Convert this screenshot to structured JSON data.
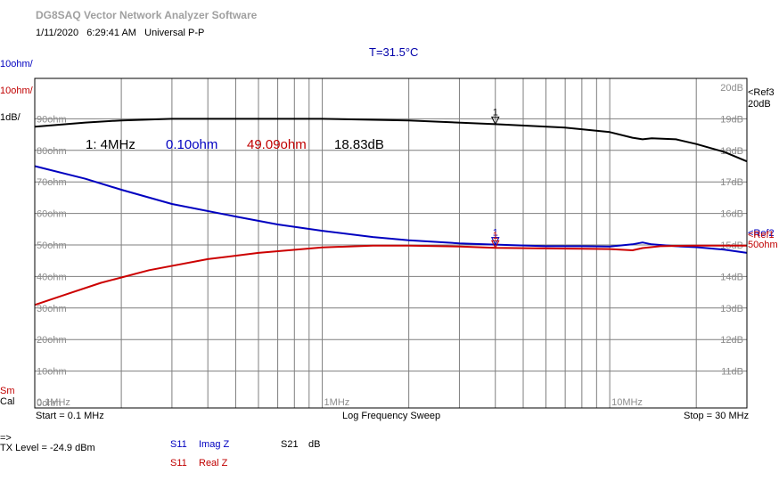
{
  "app": {
    "title": "DG8SAQ Vector Network Analyzer Software",
    "date": "1/11/2020",
    "time": "6:29:41 AM",
    "mode": "Universal P-P",
    "temperature": "T=31.5°C"
  },
  "scales": {
    "imag": "10ohm/",
    "real": "10ohm/",
    "db": "1dB/",
    "sm": "Sm",
    "cal": "Cal"
  },
  "ref_labels": {
    "ref3": "<Ref3",
    "ref3_value": "20dB",
    "ref2": "<Ref2",
    "ref1": "<Ref1",
    "ref_ohm": "50ohm"
  },
  "marker": {
    "number": "1",
    "freq": "1: 4MHz",
    "imag": "0.10ohm",
    "real": "49.09ohm",
    "db": "18.83dB"
  },
  "footer": {
    "start": "Start = 0.1 MHz",
    "sweep": "Log Frequency Sweep",
    "stop": "Stop = 30 MHz",
    "arrow": "=>",
    "tx_level": "TX Level = -24.9 dBm",
    "s11_a": "S11",
    "imag_z": "Imag Z",
    "s21": "S21",
    "db": "dB",
    "s11_b": "S11",
    "real_z": "Real Z"
  },
  "chart_data": {
    "type": "line",
    "xscale": "log",
    "xlim": [
      0.1,
      30
    ],
    "x_tick_labels": [
      {
        "x": 0.1,
        "label": "0.1MHz"
      },
      {
        "x": 1,
        "label": "1MHz"
      },
      {
        "x": 10,
        "label": "10MHz"
      }
    ],
    "left_axis": {
      "ylim": [
        0,
        100
      ],
      "tick_labels": [
        {
          "y": 90,
          "label": "90ohm"
        },
        {
          "y": 80,
          "label": "80ohm"
        },
        {
          "y": 70,
          "label": "70ohm"
        },
        {
          "y": 60,
          "label": "60ohm"
        },
        {
          "y": 50,
          "label": "50ohm"
        },
        {
          "y": 40,
          "label": "40ohm"
        },
        {
          "y": 30,
          "label": "30ohm"
        },
        {
          "y": 20,
          "label": "20ohm"
        },
        {
          "y": 10,
          "label": "10ohm"
        },
        {
          "y": 0,
          "label": "0ohm"
        }
      ]
    },
    "right_axis": {
      "ylim": [
        10,
        20
      ],
      "tick_labels": [
        {
          "y": 20,
          "label": "20dB"
        },
        {
          "y": 19,
          "label": "19dB"
        },
        {
          "y": 18,
          "label": "18dB"
        },
        {
          "y": 17,
          "label": "17dB"
        },
        {
          "y": 16,
          "label": "16dB"
        },
        {
          "y": 15,
          "label": "15dB"
        },
        {
          "y": 14,
          "label": "14dB"
        },
        {
          "y": 13,
          "label": "13dB"
        },
        {
          "y": 12,
          "label": "12dB"
        },
        {
          "y": 11,
          "label": "11dB"
        }
      ]
    },
    "grid": true,
    "series": [
      {
        "name": "S21 dB",
        "axis": "right",
        "color": "#000000",
        "points": [
          [
            0.1,
            18.75
          ],
          [
            0.15,
            18.88
          ],
          [
            0.2,
            18.95
          ],
          [
            0.3,
            19.0
          ],
          [
            0.5,
            19.0
          ],
          [
            1,
            19.0
          ],
          [
            2,
            18.95
          ],
          [
            4,
            18.83
          ],
          [
            7,
            18.72
          ],
          [
            10,
            18.58
          ],
          [
            12,
            18.4
          ],
          [
            13,
            18.35
          ],
          [
            14,
            18.38
          ],
          [
            17,
            18.35
          ],
          [
            20,
            18.2
          ],
          [
            25,
            17.95
          ],
          [
            30,
            17.65
          ]
        ]
      },
      {
        "name": "S11 Imag Z",
        "axis": "left",
        "color": "#0000c0",
        "points": [
          [
            0.1,
            75
          ],
          [
            0.15,
            71
          ],
          [
            0.2,
            67.5
          ],
          [
            0.3,
            63
          ],
          [
            0.5,
            59
          ],
          [
            0.7,
            56.5
          ],
          [
            1,
            54.5
          ],
          [
            1.5,
            52.5
          ],
          [
            2,
            51.5
          ],
          [
            3,
            50.5
          ],
          [
            4,
            50.1
          ],
          [
            6,
            49.6
          ],
          [
            8,
            49.6
          ],
          [
            10,
            49.5
          ],
          [
            12,
            50.2
          ],
          [
            13,
            50.8
          ],
          [
            14,
            50.2
          ],
          [
            17,
            49.6
          ],
          [
            20,
            49.3
          ],
          [
            25,
            48.5
          ],
          [
            30,
            47.5
          ]
        ]
      },
      {
        "name": "S11 Real Z",
        "axis": "left",
        "color": "#cc0000",
        "points": [
          [
            0.1,
            31
          ],
          [
            0.13,
            34.5
          ],
          [
            0.17,
            38
          ],
          [
            0.25,
            42
          ],
          [
            0.4,
            45.5
          ],
          [
            0.6,
            47.5
          ],
          [
            1,
            49.2
          ],
          [
            1.5,
            49.8
          ],
          [
            2,
            49.8
          ],
          [
            3,
            49.5
          ],
          [
            4,
            49.09
          ],
          [
            6,
            48.9
          ],
          [
            8,
            48.8
          ],
          [
            10,
            48.7
          ],
          [
            12,
            48.3
          ],
          [
            13,
            49.0
          ],
          [
            15,
            49.6
          ],
          [
            20,
            49.8
          ],
          [
            30,
            49.8
          ]
        ]
      }
    ],
    "marker": {
      "label": "1",
      "x": 4
    }
  }
}
